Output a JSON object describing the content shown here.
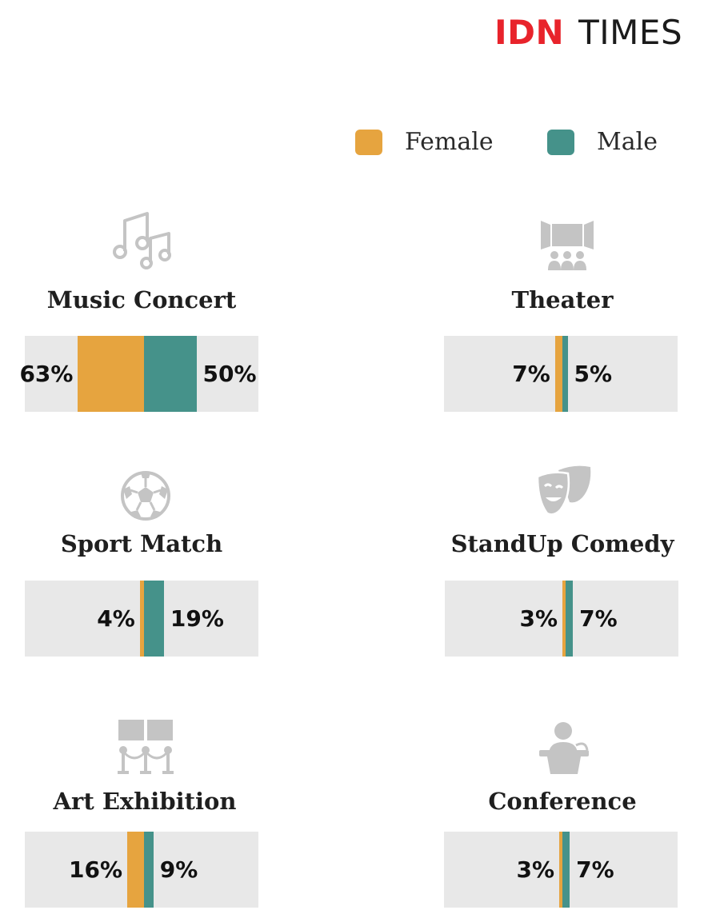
{
  "brand": {
    "part1": "IDN",
    "part2": "TIMES"
  },
  "legend": [
    {
      "label": "Female",
      "color": "#e6a43f"
    },
    {
      "label": "Male",
      "color": "#45928a"
    }
  ],
  "colors": {
    "female": "#e6a43f",
    "male": "#45928a",
    "track": "#e8e8e8",
    "icon": "#c4c4c4"
  },
  "chart_data": {
    "type": "bar",
    "categories": [
      "Music Concert",
      "Theater",
      "Sport Match",
      "StandUp Comedy",
      "Art Exhibition",
      "Conference"
    ],
    "series": [
      {
        "name": "Female",
        "values": [
          63,
          7,
          4,
          3,
          16,
          3
        ]
      },
      {
        "name": "Male",
        "values": [
          50,
          5,
          19,
          7,
          9,
          7
        ]
      }
    ],
    "labels": {
      "female": [
        "63%",
        "7%",
        "4%",
        "3%",
        "16%",
        "3%"
      ],
      "male": [
        "50%",
        "5%",
        "19%",
        "7%",
        "9%",
        "7%"
      ]
    },
    "icons": [
      "music-notes-icon",
      "theater-stage-icon",
      "soccer-ball-icon",
      "comedy-mask-icon",
      "art-gallery-icon",
      "speaker-podium-icon"
    ]
  }
}
